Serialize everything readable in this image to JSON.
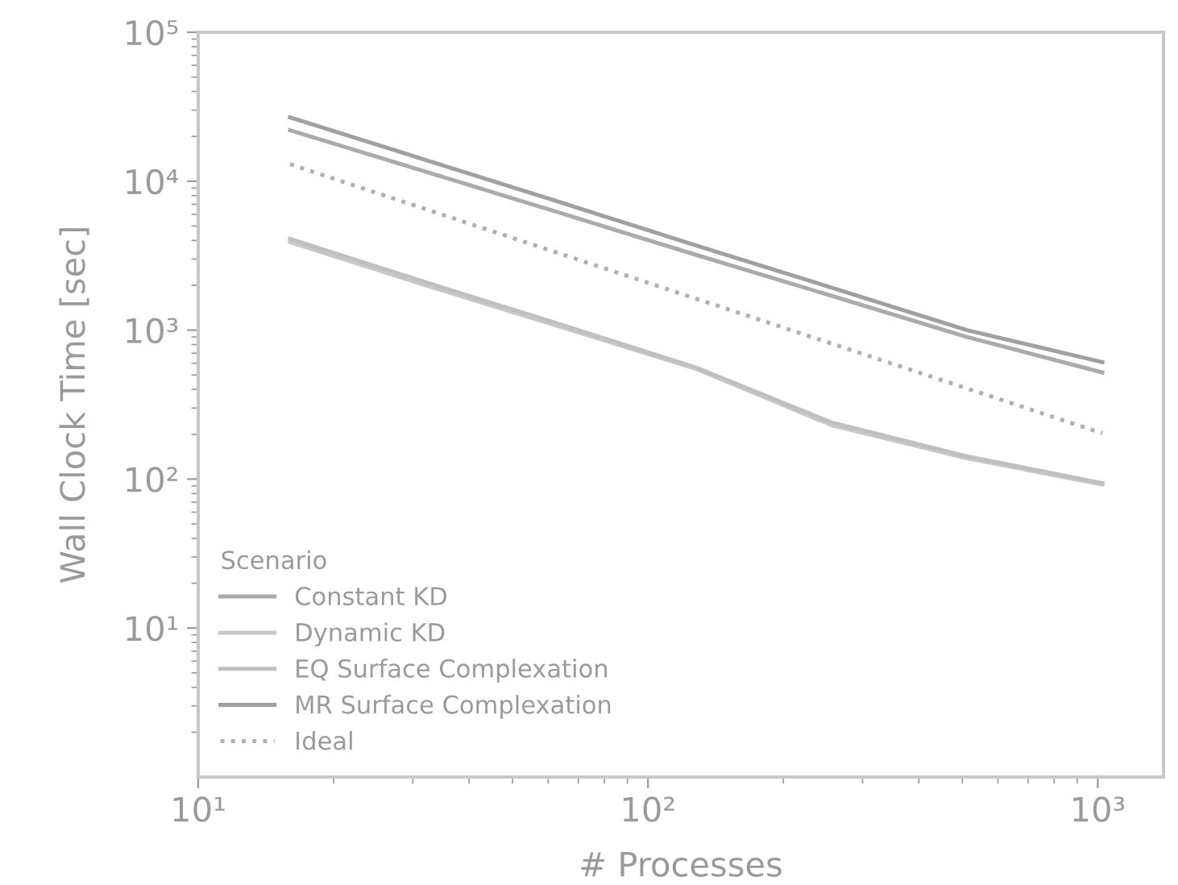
{
  "chart_data": {
    "type": "line",
    "xlabel": "# Processes",
    "ylabel": "Wall Clock Time [sec]",
    "legend_title": "Scenario",
    "legend": "bottom left",
    "log": "xy",
    "grid": false,
    "line_style": "solid",
    "x": [
      16,
      32,
      64,
      128,
      256,
      512,
      1024
    ],
    "xlim": [
      10,
      1400
    ],
    "xticks": [
      {
        "value": 10,
        "label": "10¹"
      },
      {
        "value": 100,
        "label": "10²"
      },
      {
        "value": 1000,
        "label": "10³"
      }
    ],
    "ylim": [
      1,
      100000
    ],
    "yticks": [
      {
        "value": 10,
        "label": "10¹"
      },
      {
        "value": 100,
        "label": "10²"
      },
      {
        "value": 1000,
        "label": "10³"
      },
      {
        "value": 10000,
        "label": "10⁴"
      },
      {
        "value": 100000,
        "label": "10⁵"
      }
    ],
    "series": [
      {
        "name": "Constant KD",
        "color": "#ababab",
        "values": [
          22000,
          11600,
          6100,
          3200,
          1700,
          900,
          520
        ]
      },
      {
        "name": "Dynamic KD",
        "color": "#c8c8c8",
        "values": [
          3900,
          2000,
          1050,
          550,
          230,
          138,
          92
        ]
      },
      {
        "name": "EQ Surface Complexation",
        "color": "#c0c0c0",
        "values": [
          4100,
          2100,
          1090,
          560,
          240,
          142,
          94
        ]
      },
      {
        "name": "MR Surface Complexation",
        "color": "#a0a0a0",
        "values": [
          26800,
          13900,
          7200,
          3700,
          1930,
          1000,
          610
        ]
      },
      {
        "name": "Ideal",
        "color": "#b0b0b0",
        "line_style": "dotted",
        "values": [
          13000,
          6500,
          3250,
          1625,
          812,
          406,
          203
        ]
      }
    ]
  }
}
